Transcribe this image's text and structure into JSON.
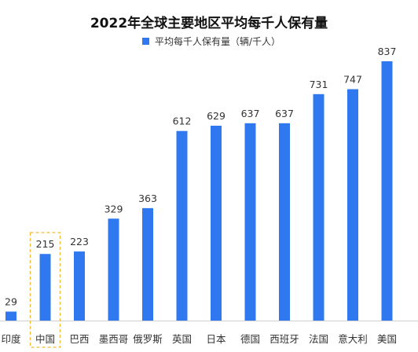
{
  "chart_data": {
    "type": "bar",
    "title": "2022年全球主要地区平均每千人保有量",
    "legend": {
      "label": "平均每千人保有量（辆/千人）",
      "position": "top-center"
    },
    "categories": [
      "印度",
      "中国",
      "巴西",
      "墨西哥",
      "俄罗斯",
      "英国",
      "日本",
      "德国",
      "西班牙",
      "法国",
      "意大利",
      "美国"
    ],
    "series": [
      {
        "name": "平均每千人保有量（辆/千人）",
        "values": [
          29,
          215,
          223,
          329,
          363,
          612,
          629,
          637,
          637,
          731,
          747,
          837
        ]
      }
    ],
    "highlight_category": "中国",
    "xlabel": "",
    "ylabel": "",
    "ylim": [
      0,
      837
    ],
    "grid": false,
    "colors": {
      "bar": "#2f78f0",
      "highlight_box": "#f2b93b",
      "axis": "#d0d0d0"
    }
  }
}
